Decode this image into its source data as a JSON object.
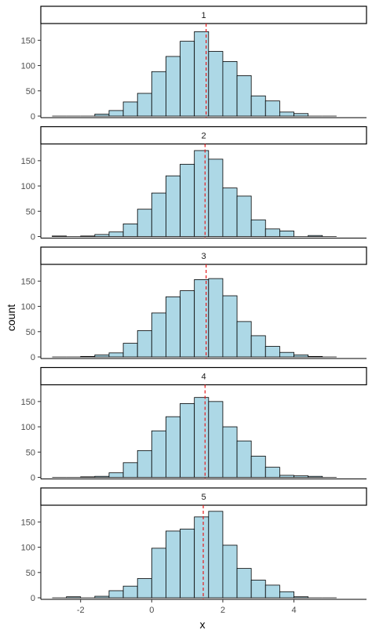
{
  "chart_data": {
    "type": "bar",
    "subtype": "faceted-histogram",
    "xlabel": "x",
    "ylabel": "count",
    "xlim": [
      -2.7,
      5.6
    ],
    "ylim": [
      0,
      180
    ],
    "x_ticks": [
      -2,
      0,
      2,
      4
    ],
    "y_ticks": [
      0,
      50,
      100,
      150
    ],
    "grid": false,
    "bin_width": 0.4,
    "fill_color": "#add8e6",
    "bar_outline_color": "#000000",
    "vline_color": "#e41a1c",
    "panels": [
      {
        "strip": "1",
        "vline": 1.53,
        "bins": [
          {
            "x": -2.6,
            "count": 0
          },
          {
            "x": -2.2,
            "count": 0
          },
          {
            "x": -1.8,
            "count": 0
          },
          {
            "x": -1.4,
            "count": 4
          },
          {
            "x": -1.0,
            "count": 11
          },
          {
            "x": -0.6,
            "count": 28
          },
          {
            "x": -0.2,
            "count": 45
          },
          {
            "x": 0.2,
            "count": 88
          },
          {
            "x": 0.6,
            "count": 118
          },
          {
            "x": 1.0,
            "count": 148
          },
          {
            "x": 1.4,
            "count": 167
          },
          {
            "x": 1.8,
            "count": 128
          },
          {
            "x": 2.2,
            "count": 108
          },
          {
            "x": 2.6,
            "count": 80
          },
          {
            "x": 3.0,
            "count": 40
          },
          {
            "x": 3.4,
            "count": 30
          },
          {
            "x": 3.8,
            "count": 8
          },
          {
            "x": 4.2,
            "count": 5
          },
          {
            "x": 4.6,
            "count": 0
          },
          {
            "x": 5.0,
            "count": 0
          }
        ]
      },
      {
        "strip": "2",
        "vline": 1.5,
        "bins": [
          {
            "x": -2.6,
            "count": 1
          },
          {
            "x": -2.2,
            "count": 0
          },
          {
            "x": -1.8,
            "count": 1
          },
          {
            "x": -1.4,
            "count": 4
          },
          {
            "x": -1.0,
            "count": 9
          },
          {
            "x": -0.6,
            "count": 25
          },
          {
            "x": -0.2,
            "count": 54
          },
          {
            "x": 0.2,
            "count": 86
          },
          {
            "x": 0.6,
            "count": 120
          },
          {
            "x": 1.0,
            "count": 143
          },
          {
            "x": 1.4,
            "count": 170
          },
          {
            "x": 1.8,
            "count": 153
          },
          {
            "x": 2.2,
            "count": 96
          },
          {
            "x": 2.6,
            "count": 80
          },
          {
            "x": 3.0,
            "count": 33
          },
          {
            "x": 3.4,
            "count": 15
          },
          {
            "x": 3.8,
            "count": 11
          },
          {
            "x": 4.2,
            "count": 0
          },
          {
            "x": 4.6,
            "count": 2
          },
          {
            "x": 5.0,
            "count": 0
          }
        ]
      },
      {
        "strip": "3",
        "vline": 1.53,
        "bins": [
          {
            "x": -2.6,
            "count": 0
          },
          {
            "x": -2.2,
            "count": 0
          },
          {
            "x": -1.8,
            "count": 1
          },
          {
            "x": -1.4,
            "count": 4
          },
          {
            "x": -1.0,
            "count": 8
          },
          {
            "x": -0.6,
            "count": 27
          },
          {
            "x": -0.2,
            "count": 52
          },
          {
            "x": 0.2,
            "count": 87
          },
          {
            "x": 0.6,
            "count": 119
          },
          {
            "x": 1.0,
            "count": 131
          },
          {
            "x": 1.4,
            "count": 153
          },
          {
            "x": 1.8,
            "count": 155
          },
          {
            "x": 2.2,
            "count": 121
          },
          {
            "x": 2.6,
            "count": 70
          },
          {
            "x": 3.0,
            "count": 42
          },
          {
            "x": 3.4,
            "count": 21
          },
          {
            "x": 3.8,
            "count": 9
          },
          {
            "x": 4.2,
            "count": 4
          },
          {
            "x": 4.6,
            "count": 1
          },
          {
            "x": 5.0,
            "count": 0
          }
        ]
      },
      {
        "strip": "4",
        "vline": 1.5,
        "bins": [
          {
            "x": -2.6,
            "count": 0
          },
          {
            "x": -2.2,
            "count": 0
          },
          {
            "x": -1.8,
            "count": 1
          },
          {
            "x": -1.4,
            "count": 2
          },
          {
            "x": -1.0,
            "count": 9
          },
          {
            "x": -0.6,
            "count": 29
          },
          {
            "x": -0.2,
            "count": 53
          },
          {
            "x": 0.2,
            "count": 92
          },
          {
            "x": 0.6,
            "count": 120
          },
          {
            "x": 1.0,
            "count": 146
          },
          {
            "x": 1.4,
            "count": 158
          },
          {
            "x": 1.8,
            "count": 150
          },
          {
            "x": 2.2,
            "count": 100
          },
          {
            "x": 2.6,
            "count": 72
          },
          {
            "x": 3.0,
            "count": 42
          },
          {
            "x": 3.4,
            "count": 20
          },
          {
            "x": 3.8,
            "count": 4
          },
          {
            "x": 4.2,
            "count": 3
          },
          {
            "x": 4.6,
            "count": 2
          },
          {
            "x": 5.0,
            "count": 0
          }
        ]
      },
      {
        "strip": "5",
        "vline": 1.45,
        "bins": [
          {
            "x": -2.6,
            "count": 0
          },
          {
            "x": -2.2,
            "count": 2
          },
          {
            "x": -1.8,
            "count": 0
          },
          {
            "x": -1.4,
            "count": 3
          },
          {
            "x": -1.0,
            "count": 14
          },
          {
            "x": -0.6,
            "count": 23
          },
          {
            "x": -0.2,
            "count": 38
          },
          {
            "x": 0.2,
            "count": 98
          },
          {
            "x": 0.6,
            "count": 132
          },
          {
            "x": 1.0,
            "count": 136
          },
          {
            "x": 1.4,
            "count": 160
          },
          {
            "x": 1.8,
            "count": 171
          },
          {
            "x": 2.2,
            "count": 104
          },
          {
            "x": 2.6,
            "count": 58
          },
          {
            "x": 3.0,
            "count": 35
          },
          {
            "x": 3.4,
            "count": 25
          },
          {
            "x": 3.8,
            "count": 12
          },
          {
            "x": 4.2,
            "count": 2
          },
          {
            "x": 4.6,
            "count": 0
          },
          {
            "x": 5.0,
            "count": 0
          }
        ]
      }
    ]
  }
}
